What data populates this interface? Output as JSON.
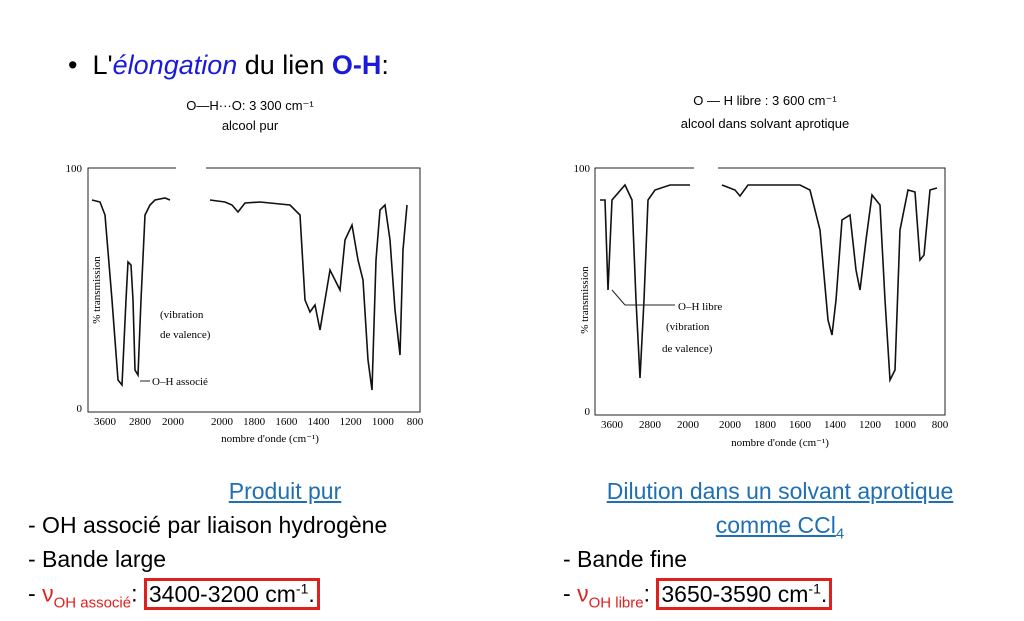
{
  "bullet": {
    "prefix": "L'",
    "em": "élongation",
    "mid": " du lien ",
    "bold": "O-H",
    "suffix": ":"
  },
  "figures": [
    {
      "caption1": "O—H···O: 3 300 cm⁻¹",
      "caption2": "alcool pur",
      "y_label": "% transmission",
      "y_ticks": [
        "100",
        "0"
      ],
      "x_ticks_left": [
        "3600",
        "2800",
        "2000"
      ],
      "x_ticks_right": [
        "2000",
        "1800",
        "1600",
        "1400",
        "1200",
        "1000",
        "800"
      ],
      "x_label": "nombre d'onde (cm⁻¹)",
      "annotations": [
        "(vibration",
        "de valence)",
        "O–H associé"
      ]
    },
    {
      "caption1": "O — H libre : 3 600 cm⁻¹",
      "caption2": "alcool dans solvant aprotique",
      "y_label": "% transmission",
      "y_ticks": [
        "100",
        "0"
      ],
      "x_ticks_left": [
        "3600",
        "2800",
        "2000"
      ],
      "x_ticks_right": [
        "2000",
        "1800",
        "1600",
        "1400",
        "1200",
        "1000",
        "800"
      ],
      "x_label": "nombre d'onde (cm⁻¹)",
      "annotations": [
        "O–H libre",
        "(vibration",
        "de valence)"
      ]
    }
  ],
  "columns": [
    {
      "title": "Produit pur",
      "lines": [
        "- OH associé par liaison hydrogène",
        "- Bande large"
      ],
      "nu": {
        "dash": "- ",
        "symbol": "ν",
        "sub": "OH associé",
        "colon": ": ",
        "value": "3400-3200 cm",
        "sup": "-1",
        "end": "."
      }
    },
    {
      "title": "Dilution dans un solvant aprotique",
      "title2": "comme CCl",
      "title2_sub": "4",
      "lines": [
        "- Bande fine"
      ],
      "nu": {
        "dash": "- ",
        "symbol": "ν",
        "sub": "OH libre",
        "colon": ": ",
        "value": "3650-3590 cm",
        "sup": "-1",
        "end": "."
      }
    }
  ]
}
